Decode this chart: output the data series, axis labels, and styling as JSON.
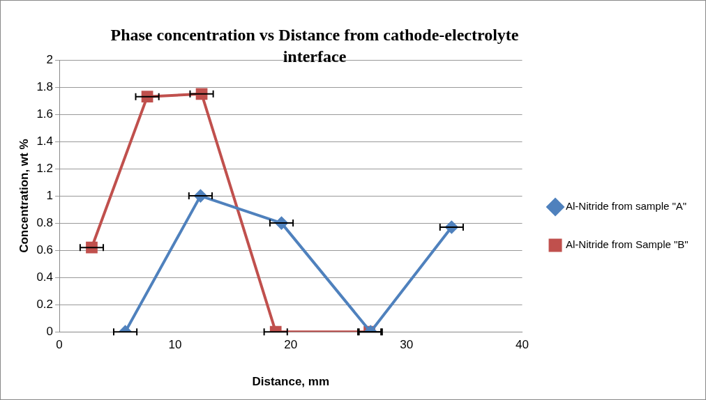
{
  "chart_data": {
    "type": "line",
    "title": "Phase concentration vs Distance from cathode-electrolyte interface",
    "xlabel": "Distance, mm",
    "ylabel": "Concentration, wt %",
    "series": [
      {
        "name": "Al-Nitride from sample \"A\"",
        "color": "#4f81bd",
        "marker": "diamond",
        "x": [
          5.7,
          12.2,
          19.2,
          26.9,
          33.9
        ],
        "values": [
          0,
          1,
          0.8,
          0,
          0.77
        ],
        "xerrors": [
          1,
          1,
          1,
          1,
          1
        ]
      },
      {
        "name": "Al-Nitride from Sample \"B\"",
        "color": "#c0504d",
        "marker": "square",
        "x": [
          2.8,
          7.6,
          12.3,
          18.7,
          26.8
        ],
        "values": [
          0.62,
          1.73,
          1.75,
          0,
          0
        ],
        "xerrors": [
          1,
          1,
          1,
          1,
          1
        ]
      }
    ],
    "xlim": [
      0,
      40
    ],
    "xticks": [
      0,
      10,
      20,
      30,
      40
    ],
    "ylim": [
      0,
      2
    ],
    "yticks": [
      0,
      0.2,
      0.4,
      0.6,
      0.8,
      1,
      1.2,
      1.4,
      1.6,
      1.8,
      2
    ],
    "grid": "y",
    "legend": "right"
  }
}
